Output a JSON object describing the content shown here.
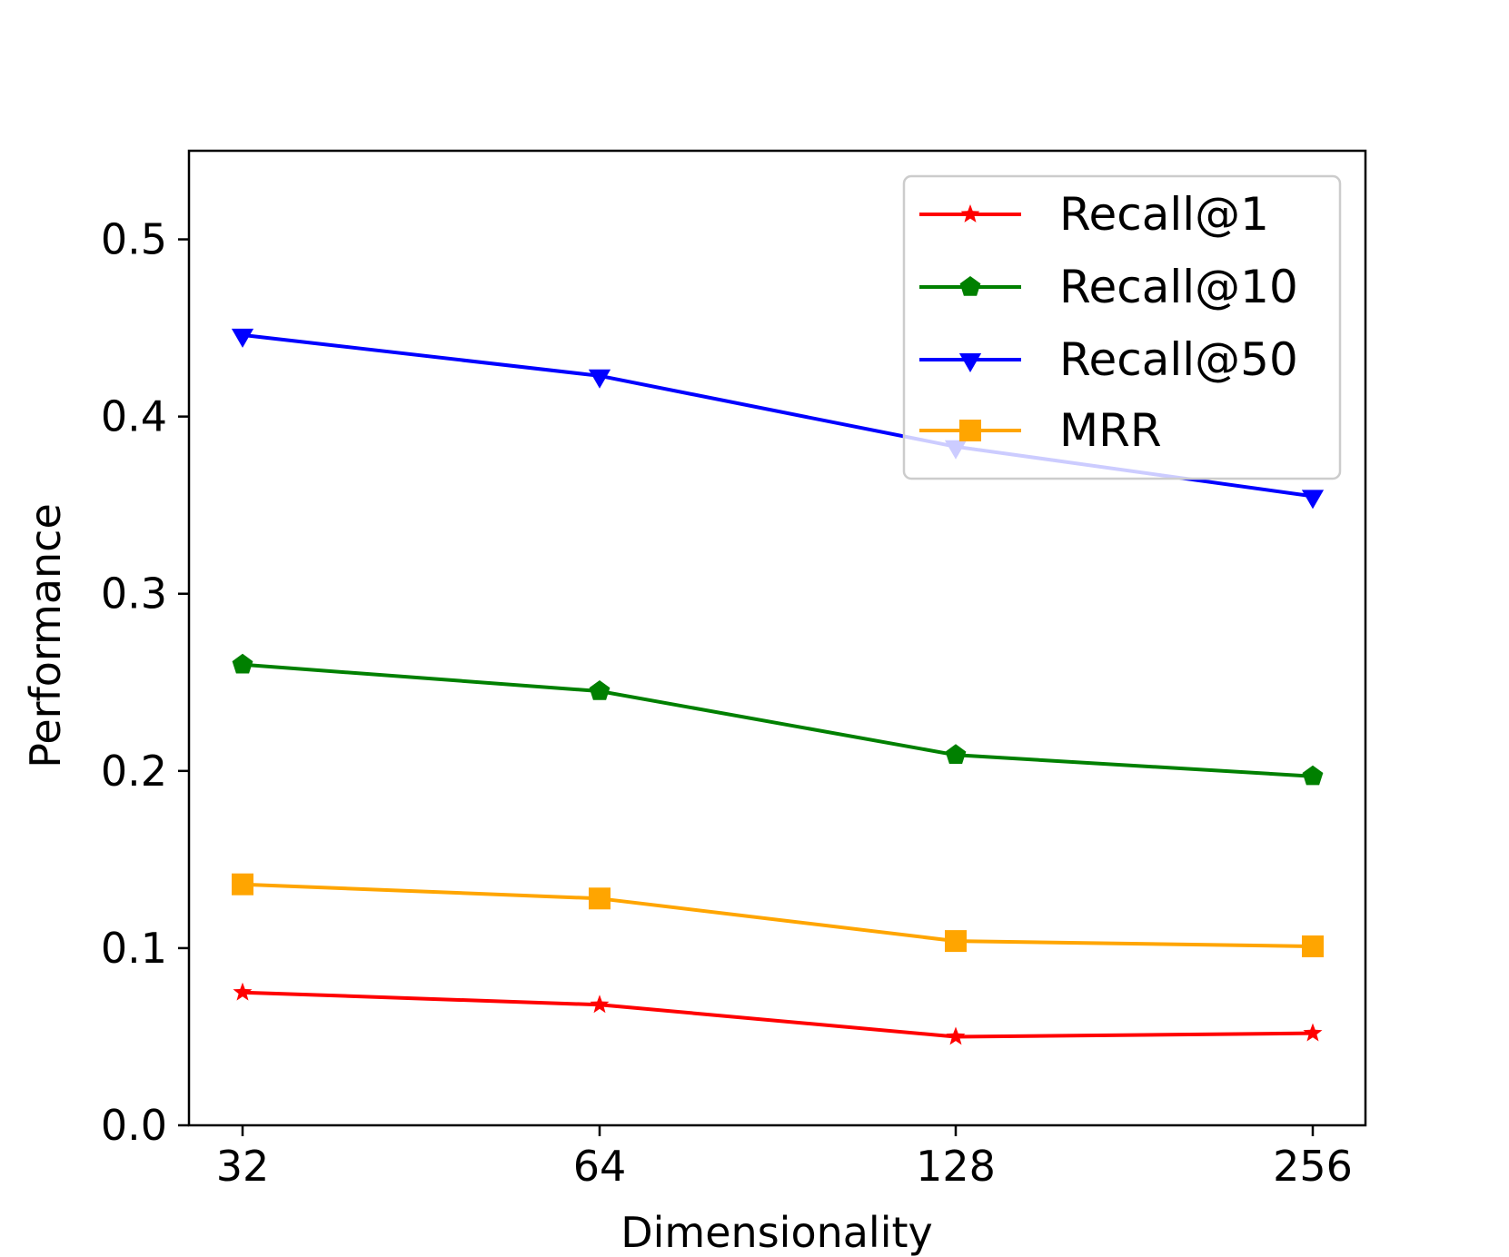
{
  "chart_data": {
    "type": "line",
    "title": "",
    "xlabel": "Dimensionality",
    "ylabel": "Performance",
    "categories": [
      "32",
      "64",
      "128",
      "256"
    ],
    "ylim": [
      0,
      0.55
    ],
    "yticks": [
      0.0,
      0.1,
      0.2,
      0.3,
      0.4,
      0.5
    ],
    "ytick_labels": [
      "0.0",
      "0.1",
      "0.2",
      "0.3",
      "0.4",
      "0.5"
    ],
    "grid": false,
    "legend_position": "top-right",
    "series": [
      {
        "name": "Recall@1",
        "color": "#ff0000",
        "marker": "star",
        "values": [
          0.075,
          0.068,
          0.05,
          0.052
        ]
      },
      {
        "name": "Recall@10",
        "color": "#008000",
        "marker": "pentagon",
        "values": [
          0.26,
          0.245,
          0.209,
          0.197
        ]
      },
      {
        "name": "Recall@50",
        "color": "#0000ff",
        "marker": "triangle-down",
        "values": [
          0.446,
          0.423,
          0.383,
          0.355
        ]
      },
      {
        "name": "MRR",
        "color": "#ffa500",
        "marker": "square",
        "values": [
          0.136,
          0.128,
          0.104,
          0.101
        ]
      }
    ]
  }
}
